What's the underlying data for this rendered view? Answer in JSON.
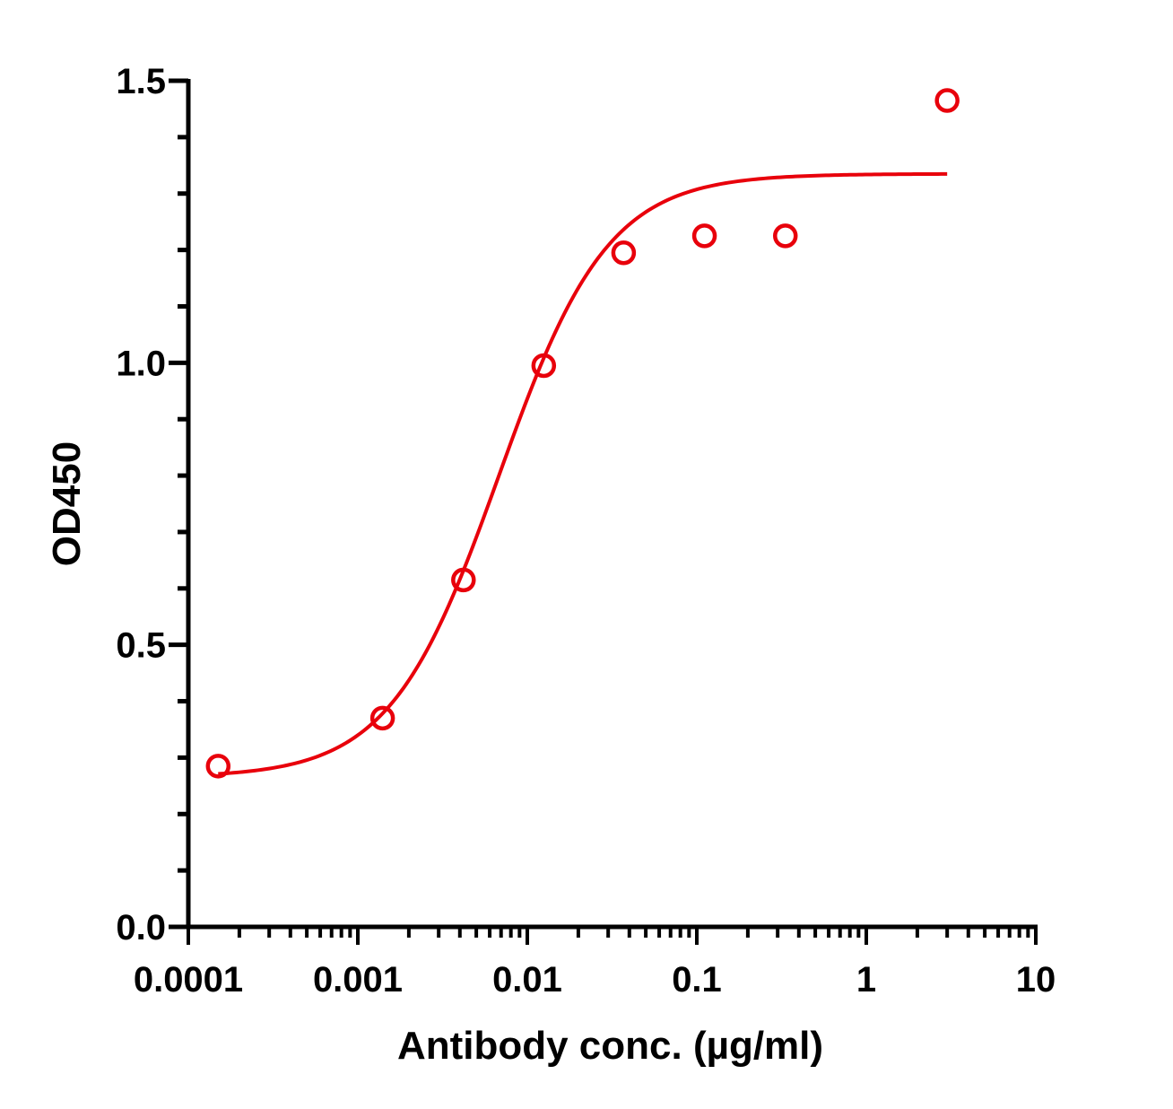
{
  "chart_data": {
    "type": "scatter",
    "title": "",
    "xlabel": "Antibody conc. (µg/ml)",
    "ylabel": "OD450",
    "x_scale": "log",
    "xlim": [
      0.0001,
      10
    ],
    "ylim": [
      0,
      1.5
    ],
    "x_tick_labels": [
      "0.0001",
      "0.001",
      "0.01",
      "0.1",
      "1",
      "10"
    ],
    "y_tick_labels": [
      "0.0",
      "0.5",
      "1.0",
      "1.5"
    ],
    "grid": false,
    "legend": "none",
    "series_color": "#e8000b",
    "points": [
      {
        "x": 0.00015,
        "y": 0.285
      },
      {
        "x": 0.0014,
        "y": 0.37
      },
      {
        "x": 0.0042,
        "y": 0.615
      },
      {
        "x": 0.0125,
        "y": 0.995
      },
      {
        "x": 0.037,
        "y": 1.195
      },
      {
        "x": 0.111,
        "y": 1.225
      },
      {
        "x": 0.333,
        "y": 1.225
      },
      {
        "x": 3.0,
        "y": 1.465
      }
    ],
    "fit": {
      "model": "four-parameter logistic",
      "bottom": 0.265,
      "top": 1.335,
      "ec50": 0.0068,
      "hill": 1.35,
      "x_range": [
        0.00015,
        3.0
      ]
    }
  }
}
